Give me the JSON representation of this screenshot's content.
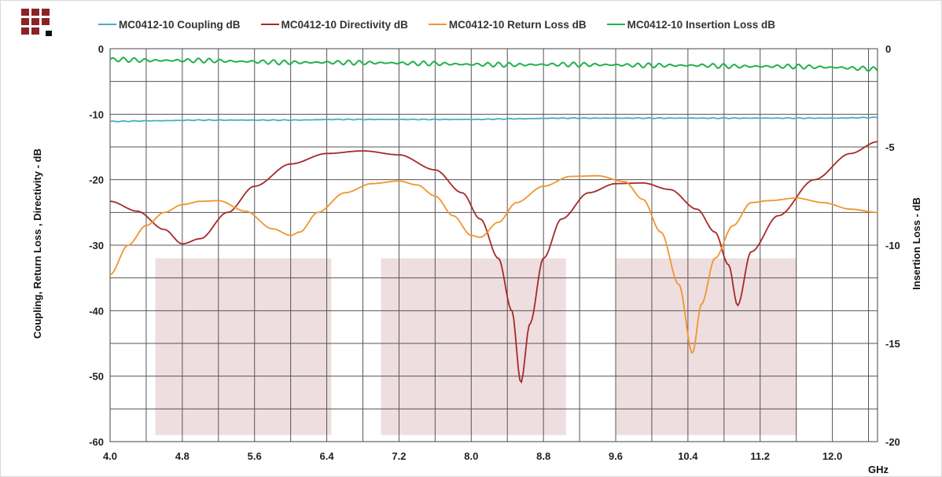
{
  "chart_data": {
    "type": "line",
    "title": "",
    "xlabel": "GHz",
    "ylabel_left": "Coupling, Return Loss , Directivity - dB",
    "ylabel_right": "Insertion Loss - dB",
    "xlim": [
      4.0,
      12.5
    ],
    "ylim_left": [
      -60,
      0
    ],
    "ylim_right": [
      -20,
      0
    ],
    "x_ticks": [
      "4.0",
      "4.8",
      "5.6",
      "6.4",
      "7.2",
      "8.0",
      "8.8",
      "9.6",
      "10.4",
      "11.2",
      "12.0"
    ],
    "x_tick_values": [
      4.0,
      4.8,
      5.6,
      6.4,
      7.2,
      8.0,
      8.8,
      9.6,
      10.4,
      11.2,
      12.0
    ],
    "y_ticks_left": [
      "0",
      "-10",
      "-20",
      "-30",
      "-40",
      "-50",
      "-60"
    ],
    "y_tick_values_left": [
      0,
      -10,
      -20,
      -30,
      -40,
      -50,
      -60
    ],
    "y_ticks_right": [
      "0",
      "-5",
      "-10",
      "-15",
      "-20"
    ],
    "y_tick_values_right": [
      0,
      -5,
      -10,
      -15,
      -20
    ],
    "grid": true,
    "legend_position": "top",
    "bands": [
      {
        "x": [
          4.5,
          6.45
        ],
        "y": [
          -32,
          -59
        ]
      },
      {
        "x": [
          7.0,
          9.05
        ],
        "y": [
          -32,
          -59
        ]
      },
      {
        "x": [
          9.6,
          11.6
        ],
        "y": [
          -32,
          -59
        ]
      }
    ],
    "series": [
      {
        "name": "MC0412-10  Coupling dB",
        "color": "#4bacc6",
        "axis": "left",
        "x": [
          4.0,
          4.5,
          5.0,
          5.5,
          6.0,
          6.5,
          7.0,
          7.5,
          8.0,
          8.5,
          9.0,
          9.5,
          10.0,
          10.5,
          11.0,
          11.5,
          12.0,
          12.5
        ],
        "y": [
          -11.1,
          -11.0,
          -10.9,
          -10.9,
          -10.9,
          -10.8,
          -10.8,
          -10.8,
          -10.8,
          -10.7,
          -10.6,
          -10.6,
          -10.6,
          -10.6,
          -10.6,
          -10.6,
          -10.6,
          -10.5
        ]
      },
      {
        "name": "MC0412-10 Directivity dB",
        "color": "#a52a2a",
        "axis": "left",
        "x": [
          4.0,
          4.3,
          4.6,
          4.8,
          5.0,
          5.3,
          5.6,
          6.0,
          6.4,
          6.8,
          7.2,
          7.6,
          7.9,
          8.1,
          8.3,
          8.45,
          8.55,
          8.65,
          8.8,
          9.0,
          9.3,
          9.6,
          9.9,
          10.2,
          10.5,
          10.7,
          10.85,
          10.95,
          11.1,
          11.4,
          11.8,
          12.2,
          12.5
        ],
        "y": [
          -23.3,
          -24.8,
          -27.6,
          -29.8,
          -29.0,
          -25.0,
          -21.0,
          -17.6,
          -16.0,
          -15.6,
          -16.2,
          -18.5,
          -22.0,
          -26.0,
          -32.0,
          -40.0,
          -51.0,
          -42.0,
          -32.0,
          -26.0,
          -22.0,
          -20.6,
          -20.5,
          -21.5,
          -24.5,
          -28.0,
          -33.0,
          -39.2,
          -31.0,
          -25.5,
          -20.0,
          -16.0,
          -14.2
        ]
      },
      {
        "name": "MC0412-10  Return Loss dB",
        "color": "#f0952f",
        "axis": "left",
        "x": [
          4.0,
          4.2,
          4.4,
          4.6,
          4.8,
          5.0,
          5.2,
          5.5,
          5.8,
          6.0,
          6.1,
          6.3,
          6.6,
          6.9,
          7.2,
          7.4,
          7.6,
          7.8,
          8.0,
          8.1,
          8.3,
          8.5,
          8.8,
          9.1,
          9.4,
          9.7,
          9.9,
          10.1,
          10.3,
          10.45,
          10.55,
          10.7,
          10.9,
          11.1,
          11.3,
          11.6,
          11.9,
          12.2,
          12.5
        ],
        "y": [
          -34.5,
          -30.0,
          -27.0,
          -25.0,
          -23.8,
          -23.3,
          -23.2,
          -24.8,
          -27.5,
          -28.5,
          -28.0,
          -25.0,
          -22.0,
          -20.6,
          -20.2,
          -20.8,
          -22.5,
          -25.5,
          -28.5,
          -28.8,
          -26.5,
          -23.5,
          -21.0,
          -19.5,
          -19.4,
          -20.3,
          -23.0,
          -28.0,
          -36.0,
          -46.5,
          -39.0,
          -32.0,
          -27.0,
          -23.5,
          -23.2,
          -22.8,
          -23.5,
          -24.5,
          -25.0
        ]
      },
      {
        "name": "MC0412-10 Insertion Loss dB",
        "color": "#22b14c",
        "axis": "right",
        "x": [
          4.0,
          4.5,
          5.0,
          5.5,
          6.0,
          6.5,
          7.0,
          7.5,
          8.0,
          8.5,
          9.0,
          9.5,
          10.0,
          10.5,
          11.0,
          11.5,
          12.0,
          12.3,
          12.5
        ],
        "y": [
          -0.55,
          -0.6,
          -0.6,
          -0.65,
          -0.7,
          -0.7,
          -0.72,
          -0.75,
          -0.8,
          -0.82,
          -0.8,
          -0.82,
          -0.85,
          -0.85,
          -0.9,
          -0.9,
          -0.95,
          -1.0,
          -1.05
        ]
      }
    ]
  }
}
